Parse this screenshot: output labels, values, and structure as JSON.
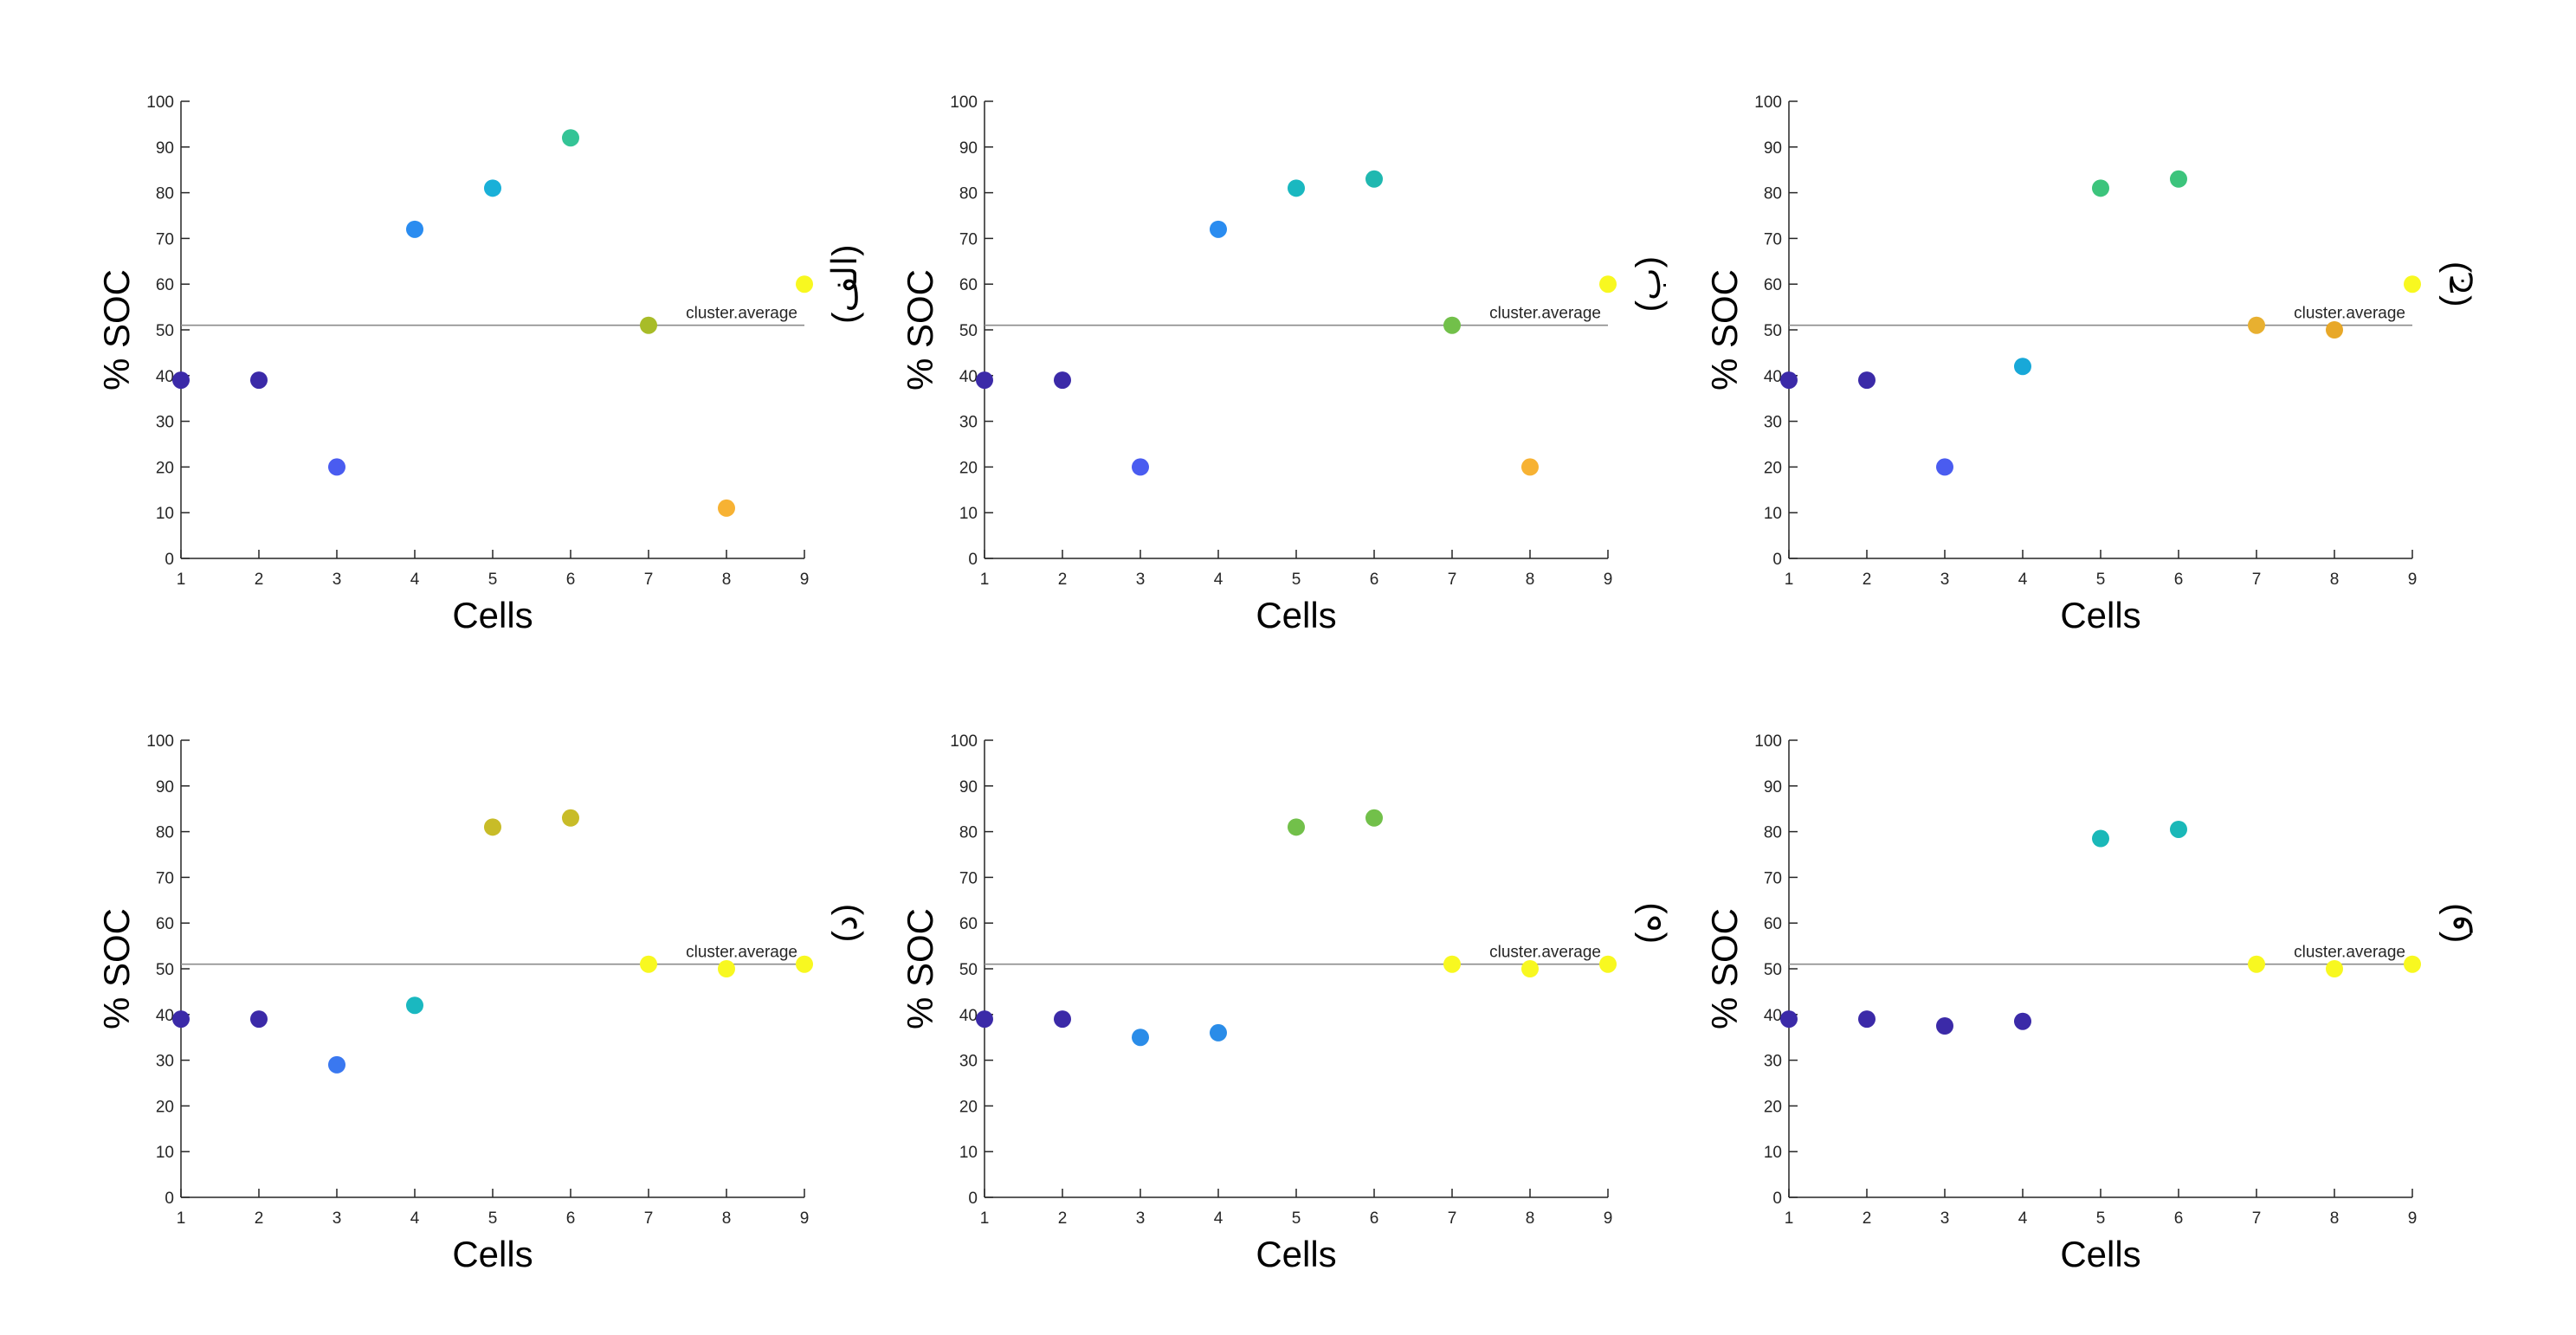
{
  "chart_data": [
    {
      "type": "scatter",
      "panel_label": "(الف)",
      "xlabel": "Cells",
      "ylabel": "% SOC",
      "xlim": [
        1,
        9
      ],
      "ylim": [
        0,
        100
      ],
      "xticks": [
        "1",
        "2",
        "3",
        "4",
        "5",
        "6",
        "7",
        "8",
        "9"
      ],
      "yticks": [
        "0",
        "10",
        "20",
        "30",
        "40",
        "50",
        "60",
        "70",
        "80",
        "90",
        "100"
      ],
      "grid": false,
      "reference_line": {
        "value": 51,
        "label": "cluster.average"
      },
      "x": [
        1,
        2,
        3,
        4,
        5,
        6,
        7,
        8,
        9
      ],
      "y": [
        39,
        39,
        20,
        72,
        81,
        92,
        51,
        11,
        60
      ],
      "colors": [
        "#3b2aa8",
        "#3b2aa8",
        "#4a5cf0",
        "#2a8cf0",
        "#1ab0d8",
        "#34c496",
        "#a8bc28",
        "#f7b233",
        "#f8f820"
      ]
    },
    {
      "type": "scatter",
      "panel_label": "(ب)",
      "xlabel": "Cells",
      "ylabel": "% SOC",
      "xlim": [
        1,
        9
      ],
      "ylim": [
        0,
        100
      ],
      "xticks": [
        "1",
        "2",
        "3",
        "4",
        "5",
        "6",
        "7",
        "8",
        "9"
      ],
      "yticks": [
        "0",
        "10",
        "20",
        "30",
        "40",
        "50",
        "60",
        "70",
        "80",
        "90",
        "100"
      ],
      "grid": false,
      "reference_line": {
        "value": 51,
        "label": "cluster.average"
      },
      "x": [
        1,
        2,
        3,
        4,
        5,
        6,
        7,
        8,
        9
      ],
      "y": [
        39,
        39,
        20,
        72,
        81,
        83,
        51,
        20,
        60
      ],
      "colors": [
        "#3b2aa8",
        "#3b2aa8",
        "#4a5cf0",
        "#2a8cf0",
        "#1ab8c0",
        "#20b8b0",
        "#72c04a",
        "#f7b233",
        "#f8f820"
      ]
    },
    {
      "type": "scatter",
      "panel_label": "(ج)",
      "xlabel": "Cells",
      "ylabel": "% SOC",
      "xlim": [
        1,
        9
      ],
      "ylim": [
        0,
        100
      ],
      "xticks": [
        "1",
        "2",
        "3",
        "4",
        "5",
        "6",
        "7",
        "8",
        "9"
      ],
      "yticks": [
        "0",
        "10",
        "20",
        "30",
        "40",
        "50",
        "60",
        "70",
        "80",
        "90",
        "100"
      ],
      "grid": false,
      "reference_line": {
        "value": 51,
        "label": "cluster.average"
      },
      "x": [
        1,
        2,
        3,
        4,
        5,
        6,
        7,
        8,
        9
      ],
      "y": [
        39,
        39,
        20,
        42,
        81,
        83,
        51,
        50,
        60
      ],
      "colors": [
        "#3b2aa8",
        "#3b2aa8",
        "#4a5cf0",
        "#18a8d8",
        "#3cc47c",
        "#3cc47c",
        "#e8b030",
        "#e8a828",
        "#f8f820"
      ]
    },
    {
      "type": "scatter",
      "panel_label": "(د)",
      "xlabel": "Cells",
      "ylabel": "% SOC",
      "xlim": [
        1,
        9
      ],
      "ylim": [
        0,
        100
      ],
      "xticks": [
        "1",
        "2",
        "3",
        "4",
        "5",
        "6",
        "7",
        "8",
        "9"
      ],
      "yticks": [
        "0",
        "10",
        "20",
        "30",
        "40",
        "50",
        "60",
        "70",
        "80",
        "90",
        "100"
      ],
      "grid": false,
      "reference_line": {
        "value": 51,
        "label": "cluster.average"
      },
      "x": [
        1,
        2,
        3,
        4,
        5,
        6,
        7,
        8,
        9
      ],
      "y": [
        39,
        39,
        29,
        42,
        81,
        83,
        51,
        50,
        51
      ],
      "colors": [
        "#3b2aa8",
        "#3b2aa8",
        "#3a78f0",
        "#1ab8c0",
        "#c8bc28",
        "#c8bc28",
        "#f8f820",
        "#f8f820",
        "#f8f820"
      ]
    },
    {
      "type": "scatter",
      "panel_label": "(ه)",
      "xlabel": "Cells",
      "ylabel": "% SOC",
      "xlim": [
        1,
        9
      ],
      "ylim": [
        0,
        100
      ],
      "xticks": [
        "1",
        "2",
        "3",
        "4",
        "5",
        "6",
        "7",
        "8",
        "9"
      ],
      "yticks": [
        "0",
        "10",
        "20",
        "30",
        "40",
        "50",
        "60",
        "70",
        "80",
        "90",
        "100"
      ],
      "grid": false,
      "reference_line": {
        "value": 51,
        "label": "cluster.average"
      },
      "x": [
        1,
        2,
        3,
        4,
        5,
        6,
        7,
        8,
        9
      ],
      "y": [
        39,
        39,
        35,
        36,
        81,
        83,
        51,
        50,
        51
      ],
      "colors": [
        "#3b2aa8",
        "#3b2aa8",
        "#2a8ce8",
        "#2a8ce8",
        "#72c04a",
        "#72c04a",
        "#f8f820",
        "#f8f820",
        "#f8f820"
      ]
    },
    {
      "type": "scatter",
      "panel_label": "(و)",
      "xlabel": "Cells",
      "ylabel": "% SOC",
      "xlim": [
        1,
        9
      ],
      "ylim": [
        0,
        100
      ],
      "xticks": [
        "1",
        "2",
        "3",
        "4",
        "5",
        "6",
        "7",
        "8",
        "9"
      ],
      "yticks": [
        "0",
        "10",
        "20",
        "30",
        "40",
        "50",
        "60",
        "70",
        "80",
        "90",
        "100"
      ],
      "grid": false,
      "reference_line": {
        "value": 51,
        "label": "cluster.average"
      },
      "x": [
        1,
        2,
        3,
        4,
        5,
        6,
        7,
        8,
        9
      ],
      "y": [
        39,
        39,
        37.5,
        38.5,
        78.5,
        80.5,
        51,
        50,
        51
      ],
      "colors": [
        "#3b2aa8",
        "#3b2aa8",
        "#3b2aa8",
        "#3b2aa8",
        "#1ab8b8",
        "#1ab8b8",
        "#f8f820",
        "#f8f820",
        "#f8f820"
      ]
    }
  ]
}
